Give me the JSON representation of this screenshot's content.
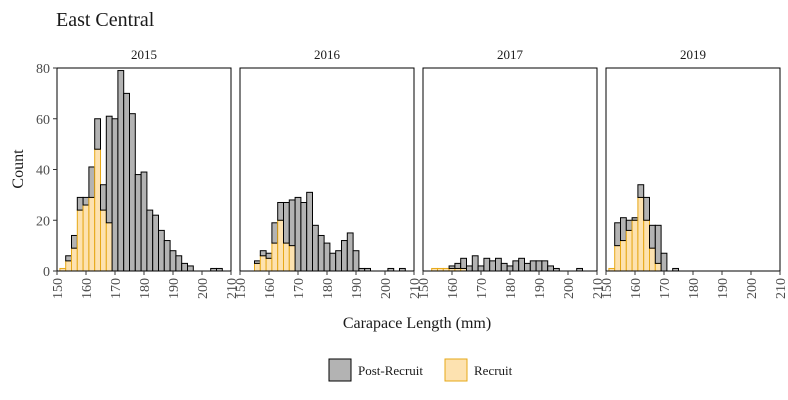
{
  "chart_data": {
    "type": "bar",
    "title": "East Central",
    "xlabel": "Carapace Length (mm)",
    "ylabel": "Count",
    "xlim": [
      150,
      210
    ],
    "ylim": [
      0,
      80
    ],
    "x_ticks": [
      "150",
      "160",
      "170",
      "180",
      "190",
      "200",
      "210"
    ],
    "y_ticks": [
      "0",
      "20",
      "40",
      "60",
      "80"
    ],
    "stacked": true,
    "bin_width_mm": 2,
    "legend_position": "bottom",
    "legend": [
      {
        "name": "Post-Recruit",
        "fill": "#b3b3b3",
        "stroke": "#000000"
      },
      {
        "name": "Recruit",
        "fill": "#fde2b0",
        "stroke": "#e6a817"
      }
    ],
    "panels": [
      {
        "label": "2015",
        "bin_starts": [
          151,
          153,
          155,
          157,
          159,
          161,
          163,
          165,
          167,
          169,
          171,
          173,
          175,
          177,
          179,
          181,
          183,
          185,
          187,
          189,
          191,
          193,
          195,
          197,
          199,
          201,
          203,
          205
        ],
        "series": [
          {
            "name": "Recruit",
            "values": [
              1,
              4,
              9,
              24,
              26,
              29,
              48,
              24,
              19,
              0,
              0,
              0,
              0,
              0,
              0,
              0,
              0,
              0,
              0,
              0,
              0,
              0,
              0,
              0,
              0,
              0,
              0,
              0
            ]
          },
          {
            "name": "Post-Recruit",
            "values": [
              0,
              2,
              5,
              5,
              3,
              12,
              12,
              10,
              42,
              60,
              79,
              70,
              62,
              38,
              39,
              24,
              22,
              16,
              12,
              8,
              6,
              3,
              2,
              0,
              0,
              0,
              1,
              1
            ]
          }
        ]
      },
      {
        "label": "2016",
        "bin_starts": [
          151,
          153,
          155,
          157,
          159,
          161,
          163,
          165,
          167,
          169,
          171,
          173,
          175,
          177,
          179,
          181,
          183,
          185,
          187,
          189,
          191,
          193,
          195,
          197,
          199,
          201,
          203,
          205
        ],
        "series": [
          {
            "name": "Recruit",
            "values": [
              0,
              0,
              3,
              6,
              5,
              11,
              20,
              11,
              10,
              0,
              0,
              0,
              0,
              0,
              0,
              0,
              0,
              0,
              0,
              0,
              0,
              0,
              0,
              0,
              0,
              0,
              0,
              0
            ]
          },
          {
            "name": "Post-Recruit",
            "values": [
              0,
              0,
              1,
              2,
              2,
              8,
              7,
              16,
              18,
              29,
              27,
              31,
              18,
              14,
              11,
              7,
              8,
              12,
              15,
              8,
              1,
              1,
              0,
              0,
              0,
              1,
              0,
              1
            ]
          }
        ]
      },
      {
        "label": "2017",
        "bin_starts": [
          151,
          153,
          155,
          157,
          159,
          161,
          163,
          165,
          167,
          169,
          171,
          173,
          175,
          177,
          179,
          181,
          183,
          185,
          187,
          189,
          191,
          193,
          195,
          197,
          199,
          201,
          203,
          205
        ],
        "series": [
          {
            "name": "Recruit",
            "values": [
              0,
              1,
              1,
              1,
              1,
              1,
              1,
              0,
              0,
              0,
              0,
              0,
              0,
              0,
              0,
              0,
              0,
              0,
              0,
              0,
              0,
              0,
              0,
              0,
              0,
              0,
              0,
              0
            ]
          },
          {
            "name": "Post-Recruit",
            "values": [
              0,
              0,
              0,
              0,
              1,
              2,
              4,
              2,
              6,
              2,
              5,
              4,
              5,
              3,
              2,
              4,
              5,
              3,
              4,
              4,
              4,
              2,
              1,
              0,
              0,
              0,
              1,
              0
            ]
          }
        ]
      },
      {
        "label": "2019",
        "bin_starts": [
          151,
          153,
          155,
          157,
          159,
          161,
          163,
          165,
          167,
          169,
          171,
          173,
          175,
          177,
          179,
          181,
          183,
          185,
          187,
          189,
          191,
          193,
          195,
          197,
          199,
          201,
          203,
          205
        ],
        "series": [
          {
            "name": "Recruit",
            "values": [
              1,
              10,
              12,
              16,
              20,
              29,
              20,
              9,
              3,
              0,
              0,
              0,
              0,
              0,
              0,
              0,
              0,
              0,
              0,
              0,
              0,
              0,
              0,
              0,
              0,
              0,
              0,
              0
            ]
          },
          {
            "name": "Post-Recruit",
            "values": [
              0,
              9,
              9,
              4,
              1,
              5,
              9,
              9,
              15,
              7,
              0,
              1,
              0,
              0,
              0,
              0,
              0,
              0,
              0,
              0,
              0,
              0,
              0,
              0,
              0,
              0,
              0,
              0
            ]
          }
        ]
      }
    ]
  }
}
